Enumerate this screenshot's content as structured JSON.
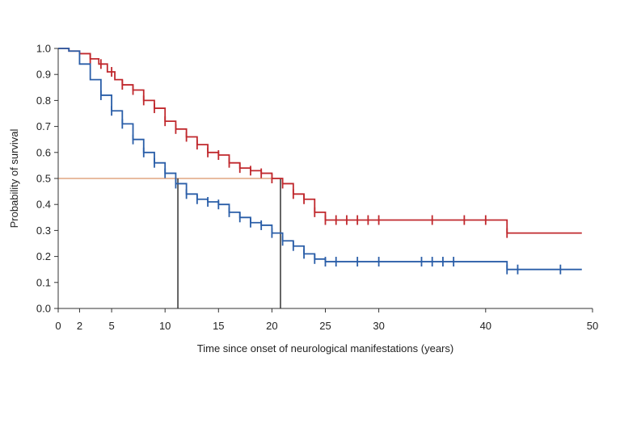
{
  "chart_data": {
    "type": "line",
    "title": "",
    "xlabel": "Time since onset of neurological manifestations (years)",
    "ylabel": "Probability of survival",
    "xlim": [
      0,
      50
    ],
    "ylim": [
      0,
      1.0
    ],
    "x_ticks": [
      0,
      2,
      5,
      10,
      15,
      20,
      25,
      30,
      40,
      50
    ],
    "y_ticks": [
      0.0,
      0.1,
      0.2,
      0.3,
      0.4,
      0.5,
      0.6,
      0.7,
      0.8,
      0.9,
      1.0
    ],
    "y_tick_labels": [
      "0.0",
      "0.1",
      "0.2",
      "0.3",
      "0.4",
      "0.5",
      "0.6",
      "0.7",
      "0.8",
      "0.9",
      "1.0"
    ],
    "grid": false,
    "legend": "none",
    "series": [
      {
        "color": "#c0282d",
        "steps": [
          [
            0,
            1.0
          ],
          [
            1,
            0.99
          ],
          [
            2,
            0.98
          ],
          [
            3,
            0.96
          ],
          [
            3.8,
            0.94
          ],
          [
            4.6,
            0.91
          ],
          [
            5.3,
            0.88
          ],
          [
            6,
            0.86
          ],
          [
            7,
            0.84
          ],
          [
            8,
            0.8
          ],
          [
            9,
            0.77
          ],
          [
            10,
            0.72
          ],
          [
            11,
            0.69
          ],
          [
            12,
            0.66
          ],
          [
            13,
            0.63
          ],
          [
            14,
            0.6
          ],
          [
            15,
            0.59
          ],
          [
            16,
            0.56
          ],
          [
            17,
            0.54
          ],
          [
            18,
            0.53
          ],
          [
            19,
            0.52
          ],
          [
            20,
            0.5
          ],
          [
            21,
            0.48
          ],
          [
            22,
            0.44
          ],
          [
            23,
            0.42
          ],
          [
            24,
            0.37
          ],
          [
            25,
            0.34
          ],
          [
            42,
            0.29
          ],
          [
            49,
            0.29
          ]
        ],
        "censored": [
          3,
          4,
          5,
          6,
          7,
          8,
          9,
          10,
          11,
          12,
          13,
          14,
          15,
          16,
          17,
          18,
          19,
          20,
          21,
          22,
          23,
          24,
          25,
          26,
          27,
          28,
          29,
          30,
          35,
          38,
          40,
          42
        ]
      },
      {
        "color": "#2a5ea8",
        "steps": [
          [
            0,
            1.0
          ],
          [
            1,
            0.99
          ],
          [
            2,
            0.94
          ],
          [
            3,
            0.88
          ],
          [
            4,
            0.82
          ],
          [
            5,
            0.76
          ],
          [
            6,
            0.71
          ],
          [
            7,
            0.65
          ],
          [
            8,
            0.6
          ],
          [
            9,
            0.56
          ],
          [
            10,
            0.52
          ],
          [
            11,
            0.48
          ],
          [
            12,
            0.44
          ],
          [
            13,
            0.42
          ],
          [
            14,
            0.41
          ],
          [
            15,
            0.4
          ],
          [
            16,
            0.37
          ],
          [
            17,
            0.35
          ],
          [
            18,
            0.33
          ],
          [
            19,
            0.32
          ],
          [
            20,
            0.29
          ],
          [
            21,
            0.26
          ],
          [
            22,
            0.24
          ],
          [
            23,
            0.21
          ],
          [
            24,
            0.19
          ],
          [
            25,
            0.18
          ],
          [
            42,
            0.15
          ],
          [
            49,
            0.15
          ]
        ],
        "censored": [
          4,
          5,
          6,
          7,
          8,
          9,
          10,
          11,
          12,
          13,
          14,
          15,
          16,
          17,
          18,
          19,
          20,
          21,
          22,
          23,
          24,
          25,
          26,
          28,
          30,
          34,
          35,
          36,
          37,
          42,
          43,
          47
        ]
      }
    ],
    "reference_lines": {
      "median_y": 0.5,
      "median_x": [
        11.2,
        20.8
      ],
      "horizontal_color": "#e0a582",
      "vertical_color": "#333333"
    }
  }
}
